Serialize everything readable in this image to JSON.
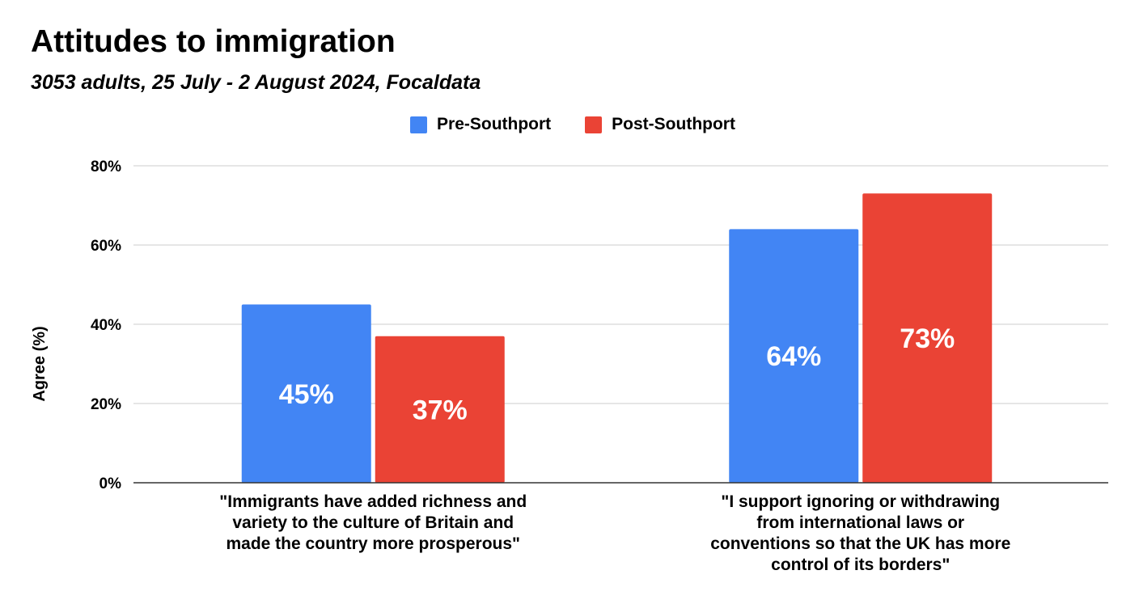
{
  "chart_data": {
    "type": "bar",
    "title": "Attitudes to immigration",
    "subtitle": "3053 adults, 25 July - 2 August 2024, Focaldata",
    "ylabel": "Agree (%)",
    "xlabel": "",
    "ylim": [
      0,
      80
    ],
    "yticks": [
      0,
      20,
      40,
      60,
      80
    ],
    "ytick_labels": [
      "0%",
      "20%",
      "40%",
      "60%",
      "80%"
    ],
    "grid": true,
    "legend_position": "top-center",
    "categories": [
      "\"Immigrants have added richness and variety to the culture of Britain and made the country more prosperous\"",
      "\"I support ignoring or withdrawing from international laws or conventions so that the UK has more control of its borders\""
    ],
    "category_lines": [
      [
        "\"Immigrants have added richness and",
        "variety to the culture of Britain and",
        "made the country more prosperous\""
      ],
      [
        "\"I support ignoring or withdrawing",
        "from international laws or",
        "conventions so that the UK has more",
        "control of its borders\""
      ]
    ],
    "series": [
      {
        "name": "Pre-Southport",
        "color": "#4285f4",
        "values": [
          45,
          64
        ],
        "labels": [
          "45%",
          "64%"
        ]
      },
      {
        "name": "Post-Southport",
        "color": "#ea4335",
        "values": [
          37,
          73
        ],
        "labels": [
          "37%",
          "73%"
        ]
      }
    ]
  }
}
